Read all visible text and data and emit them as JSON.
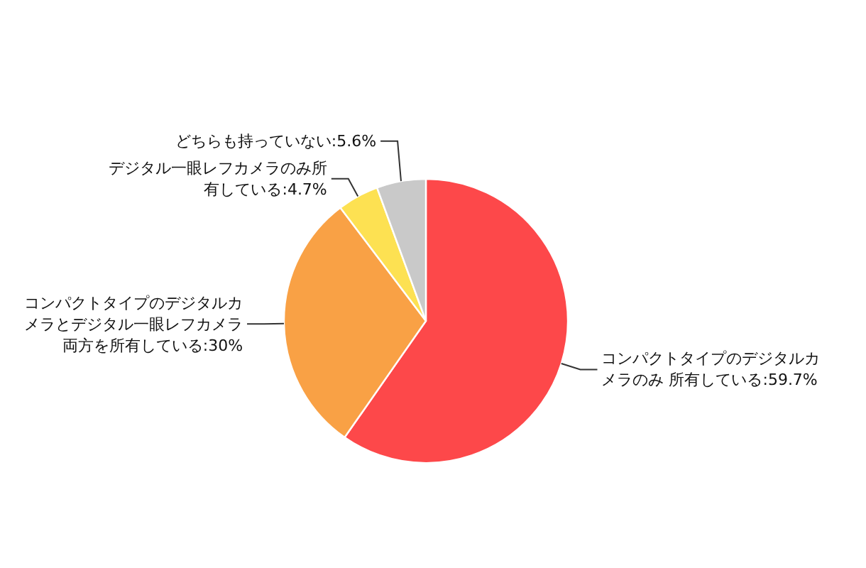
{
  "chart_data": {
    "type": "pie",
    "categories": [
      "コンパクトタイプのデジタルカメラのみ 所有している",
      "コンパクトタイプのデジタルカメラとデジタル一眼レフカメラ両方を所有している",
      "デジタル一眼レフカメラのみ所有している",
      "どちらも持っていない"
    ],
    "values": [
      59.7,
      30,
      4.7,
      5.6
    ],
    "colors": [
      "#fd484a",
      "#f9a145",
      "#fde152",
      "#c9c9c9"
    ],
    "value_labels": [
      ":59.7%",
      ":30%",
      ":4.7%",
      ":5.6%"
    ]
  }
}
